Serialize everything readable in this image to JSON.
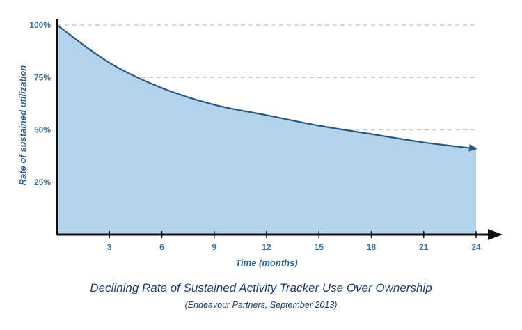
{
  "chart_data": {
    "type": "area",
    "title": "",
    "xlabel": "Time (months)",
    "ylabel": "Rate of sustained utilization",
    "x": [
      0,
      3,
      6,
      9,
      12,
      15,
      18,
      21,
      24
    ],
    "values": [
      100,
      82,
      70,
      62,
      57,
      52,
      48,
      44,
      41
    ],
    "xlim": [
      0,
      24
    ],
    "ylim": [
      0,
      100
    ],
    "x_ticks": [
      "3",
      "6",
      "9",
      "12",
      "15",
      "18",
      "21",
      "24"
    ],
    "y_ticks": [
      "25%",
      "50%",
      "75%",
      "100%"
    ],
    "y_tick_values": [
      25,
      50,
      75,
      100
    ],
    "x_tick_values": [
      3,
      6,
      9,
      12,
      15,
      18,
      21,
      24
    ],
    "grid": "horizontal-dashed",
    "legend": "none"
  },
  "caption": {
    "title": "Declining Rate of Sustained Activity Tracker Use Over Ownership",
    "source": "(Endeavour Partners, September 2013)"
  },
  "colors": {
    "fill": "#b3d3ea",
    "line": "#2b577f",
    "grid": "#c2c2c2",
    "axis": "#0d0d0d",
    "tick": "#3a6f99"
  }
}
